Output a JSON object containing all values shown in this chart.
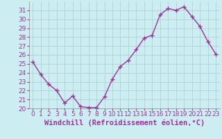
{
  "x": [
    0,
    1,
    2,
    3,
    4,
    5,
    6,
    7,
    8,
    9,
    10,
    11,
    12,
    13,
    14,
    15,
    16,
    17,
    18,
    19,
    20,
    21,
    22,
    23
  ],
  "y": [
    25.2,
    23.8,
    22.7,
    22.0,
    20.6,
    21.4,
    20.2,
    20.1,
    20.1,
    21.3,
    23.3,
    24.7,
    25.4,
    26.6,
    27.9,
    28.2,
    30.5,
    31.2,
    31.0,
    31.4,
    30.3,
    29.2,
    27.5,
    26.1
  ],
  "line_color": "#993399",
  "marker": "+",
  "marker_size": 4,
  "background_color": "#cceef2",
  "grid_color": "#aacccc",
  "xlabel": "Windchill (Refroidissement éolien,°C)",
  "xlabel_fontsize": 7.5,
  "ylim": [
    20,
    32
  ],
  "yticks": [
    20,
    21,
    22,
    23,
    24,
    25,
    26,
    27,
    28,
    29,
    30,
    31
  ],
  "xticks": [
    0,
    1,
    2,
    3,
    4,
    5,
    6,
    7,
    8,
    9,
    10,
    11,
    12,
    13,
    14,
    15,
    16,
    17,
    18,
    19,
    20,
    21,
    22,
    23
  ],
  "tick_fontsize": 6.5,
  "line_width": 1.0,
  "marker_edge_width": 1.0
}
